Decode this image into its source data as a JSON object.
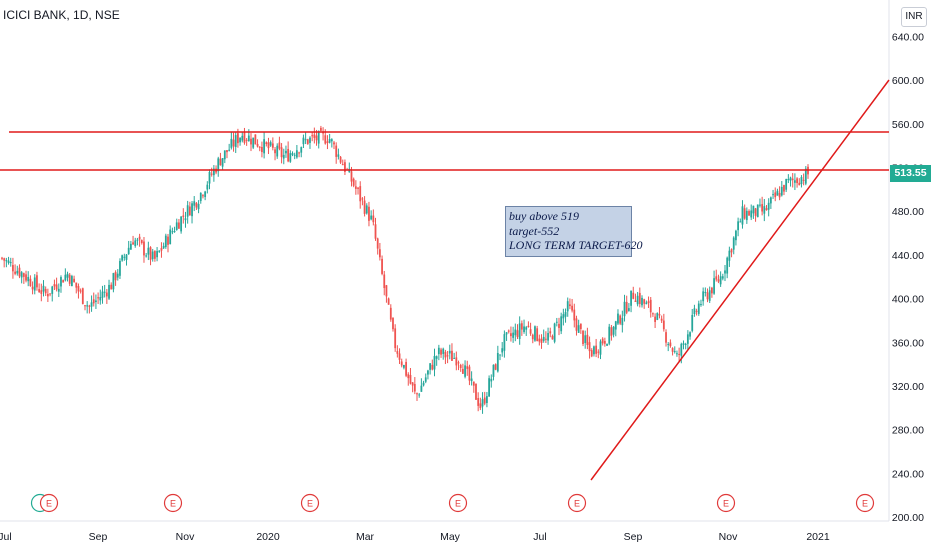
{
  "header": {
    "title": "ICICI BANK, 1D, NSE",
    "currency": "INR"
  },
  "annotation": {
    "lines": [
      "buy above 519",
      "target-552",
      "LONG TERM TARGET-620"
    ]
  },
  "last_price": {
    "label": "513.55",
    "color": "#22ab94"
  },
  "earnings_marker": {
    "text": "E",
    "color": "#e03a3a",
    "months": [
      "Aug",
      "Nov",
      "2020",
      "May",
      "Jul",
      "Sep",
      "Nov",
      "2021"
    ]
  },
  "colors": {
    "up": "#26a69a",
    "down": "#ef5350",
    "drawing": "#e01a1a",
    "annotation_bg": "#c4d2e6"
  },
  "chart_data": {
    "type": "candlestick",
    "title": "ICICI BANK, 1D, NSE",
    "currency": "INR",
    "y_range": [
      200,
      660
    ],
    "y_ticks": [
      "640.00",
      "600.00",
      "560.00",
      "520.00",
      "480.00",
      "440.00",
      "400.00",
      "360.00",
      "320.00",
      "280.00",
      "240.00",
      "200.00"
    ],
    "x_ticks": [
      "Jul",
      "Sep",
      "Nov",
      "2020",
      "Mar",
      "May",
      "Jul",
      "Sep",
      "Nov",
      "2021"
    ],
    "last_price": 513.55,
    "horizontal_levels": [
      552,
      519
    ],
    "trendline": {
      "start_price": 234,
      "start_month": "Aug",
      "end_price": 600,
      "end_month": "2021"
    },
    "approx_close_path": [
      {
        "t": "Jul",
        "price": 437
      },
      {
        "t": "Jul",
        "price": 422
      },
      {
        "t": "Aug",
        "price": 404
      },
      {
        "t": "Aug",
        "price": 423
      },
      {
        "t": "Sep",
        "price": 392
      },
      {
        "t": "Sep",
        "price": 412
      },
      {
        "t": "Oct",
        "price": 455
      },
      {
        "t": "Oct",
        "price": 435
      },
      {
        "t": "Nov",
        "price": 468
      },
      {
        "t": "Nov",
        "price": 492
      },
      {
        "t": "Dec",
        "price": 527
      },
      {
        "t": "Dec",
        "price": 551
      },
      {
        "t": "2020",
        "price": 540
      },
      {
        "t": "Jan",
        "price": 530
      },
      {
        "t": "Feb",
        "price": 545
      },
      {
        "t": "Feb",
        "price": 548
      },
      {
        "t": "Mar",
        "price": 510
      },
      {
        "t": "Mar",
        "price": 470
      },
      {
        "t": "Mar",
        "price": 360
      },
      {
        "t": "Apr",
        "price": 310
      },
      {
        "t": "Apr",
        "price": 350
      },
      {
        "t": "May",
        "price": 345
      },
      {
        "t": "May",
        "price": 300
      },
      {
        "t": "Jun",
        "price": 360
      },
      {
        "t": "Jun",
        "price": 375
      },
      {
        "t": "Jul",
        "price": 360
      },
      {
        "t": "Jul",
        "price": 392
      },
      {
        "t": "Aug",
        "price": 350
      },
      {
        "t": "Aug",
        "price": 370
      },
      {
        "t": "Sep",
        "price": 405
      },
      {
        "t": "Sep",
        "price": 385
      },
      {
        "t": "Oct",
        "price": 345
      },
      {
        "t": "Oct",
        "price": 395
      },
      {
        "t": "Nov",
        "price": 420
      },
      {
        "t": "Nov",
        "price": 478
      },
      {
        "t": "Nov",
        "price": 480
      },
      {
        "t": "Dec",
        "price": 505
      },
      {
        "t": "Dec",
        "price": 514
      }
    ]
  }
}
